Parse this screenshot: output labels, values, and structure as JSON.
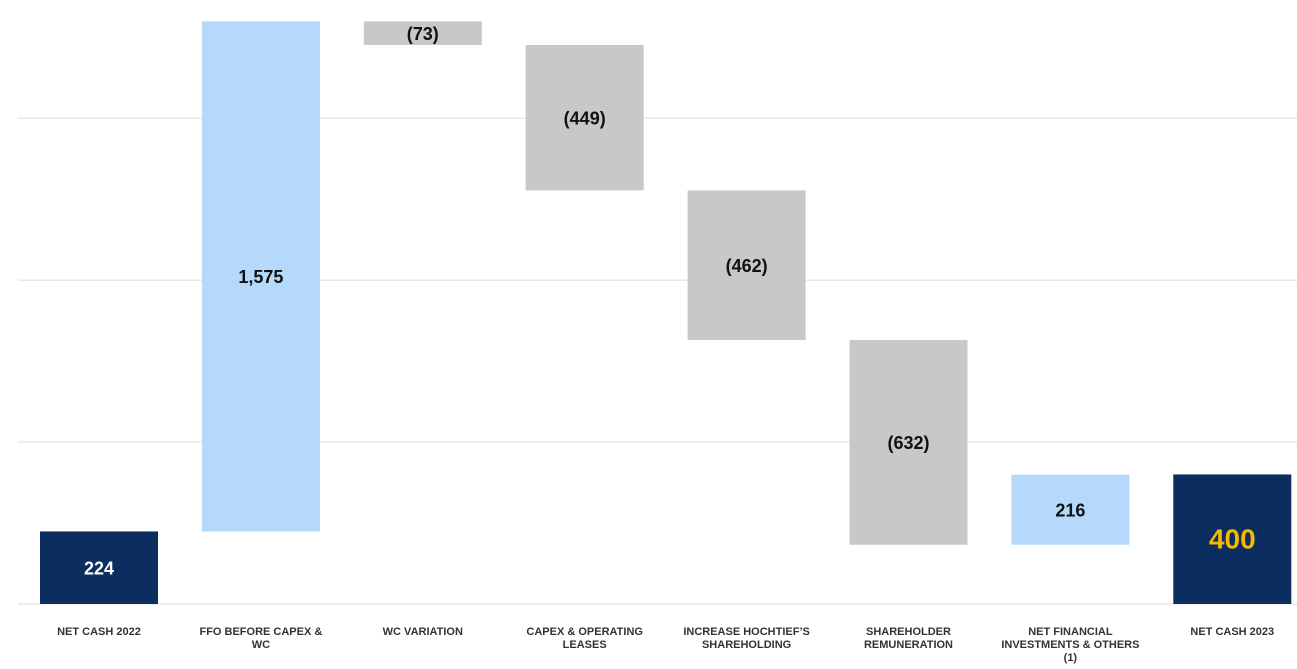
{
  "chart_data": {
    "type": "waterfall",
    "categories": [
      "NET CASH 2022",
      "FFO BEFORE CAPEX & WC",
      "WC VARIATION",
      "CAPEX & OPERATING LEASES",
      "INCREASE HOCHTIEF’S SHAREHOLDING",
      "SHAREHOLDER REMUNERATION",
      "NET FINANCIAL INVESTMENTS & OTHERS (1)",
      "NET CASH 2023"
    ],
    "values": [
      224,
      1575,
      -73,
      -449,
      -462,
      -632,
      216,
      400
    ],
    "value_labels": [
      "224",
      "1,575",
      "(73)",
      "(449)",
      "(462)",
      "(632)",
      "216",
      "400"
    ],
    "measures": [
      "total",
      "relative",
      "relative",
      "relative",
      "relative",
      "relative",
      "relative",
      "total"
    ],
    "colors": {
      "total": "#0b2d5f",
      "increase": "#b4d9fb",
      "decrease": "#c8c8c9"
    },
    "ylim": [
      0,
      1800
    ],
    "yticks": [
      0,
      500,
      1000,
      1500
    ],
    "grid": true
  }
}
